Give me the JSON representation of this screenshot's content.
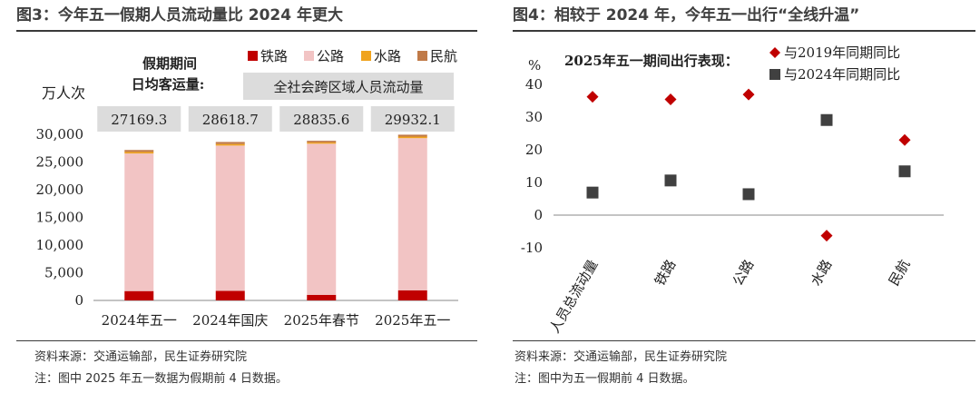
{
  "left": {
    "title": "图3：今年五一假期人员流动量比 2024 年更大",
    "source": "资料来源：交通运输部，民生证券研究院",
    "note": "注：图中 2025 年五一数据为假期前 4 日数据。",
    "colors": {
      "rail": "#c00000",
      "road": "#f2c4c4",
      "water": "#f0a31d",
      "air": "#c07a48"
    },
    "chart_data": {
      "type": "bar",
      "stacked": true,
      "categories": [
        "2024年五一",
        "2024年国庆",
        "2025年春节",
        "2025年五一"
      ],
      "series": [
        {
          "name": "铁路",
          "values": [
            1690,
            1720,
            1010,
            1830
          ]
        },
        {
          "name": "公路",
          "values": [
            24850,
            26250,
            27300,
            27480
          ]
        },
        {
          "name": "水路",
          "values": [
            280,
            280,
            230,
            280
          ]
        },
        {
          "name": "民航",
          "values": [
            349.3,
            368.7,
            295.6,
            342.1
          ]
        }
      ],
      "totals": [
        "27169.3",
        "28618.7",
        "28835.6",
        "29932.1"
      ],
      "ylabel": "万人次",
      "ylim": [
        0,
        30000
      ],
      "yticks": [
        "0",
        "5,000",
        "10,000",
        "15,000",
        "20,000",
        "25,000",
        "30,000"
      ],
      "legend_position": "top-right",
      "annotation_label": "假期期间\n日均客运量:",
      "annotation_box": "全社会跨区域人员流动量"
    }
  },
  "right": {
    "title": "图4：相较于 2024 年，今年五一出行“全线升温”",
    "source": "资料来源：交通运输部，民生证券研究院",
    "note": "注：图中为五一假期前 4 日数据。",
    "colors": {
      "vs2019": "#c00000",
      "vs2024": "#404040"
    },
    "chart_data": {
      "type": "scatter",
      "title": "2025年五一期间出行表现：",
      "categories": [
        "人员总流动量",
        "铁路",
        "公路",
        "水路",
        "民航"
      ],
      "series": [
        {
          "name": "与2019年同期同比",
          "marker": "diamond",
          "values": [
            36.2,
            35.4,
            36.9,
            -6.3,
            23.0
          ]
        },
        {
          "name": "与2024年同期同比",
          "marker": "square",
          "values": [
            6.9,
            10.6,
            6.4,
            29.1,
            13.4
          ]
        }
      ],
      "ylabel": "%",
      "ylim": [
        -10,
        40
      ],
      "yticks": [
        "-10",
        "0",
        "10",
        "20",
        "30",
        "40"
      ],
      "legend_position": "top-right"
    }
  }
}
